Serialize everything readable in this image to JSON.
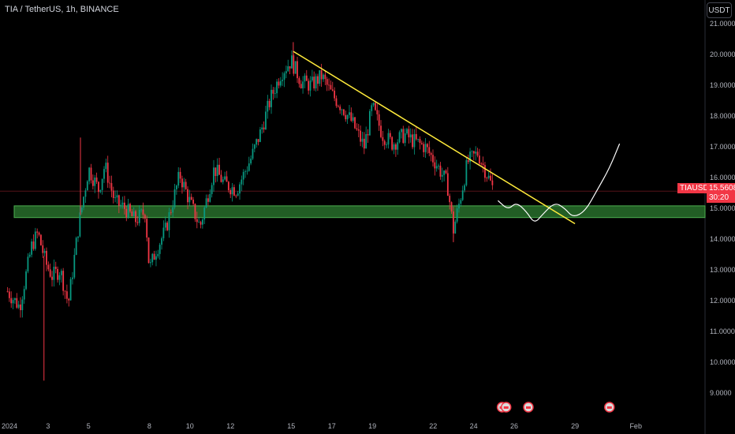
{
  "header": {
    "title": "TIA / TetherUS, 1h, BINANCE",
    "currency_button": "USDT"
  },
  "price_marker": {
    "symbol": "TIAUSDT",
    "price": "15.5608",
    "countdown": "30:20",
    "color": "#f23645"
  },
  "colors": {
    "up": "#089981",
    "down": "#f23645",
    "trendline": "#ffeb3b",
    "zone_fill": "#2e7d32",
    "projection": "#ffffff",
    "grid": "#1a1a1a"
  },
  "chart_data": {
    "type": "candlestick",
    "title": "TIA / TetherUS, 1h, BINANCE",
    "y_axis": {
      "ylim": [
        8.75,
        21.2
      ],
      "ticks": [
        "21.0000",
        "20.0000",
        "19.0000",
        "18.0000",
        "17.0000",
        "16.0000",
        "15.0000",
        "14.0000",
        "13.0000",
        "12.0000",
        "11.0000",
        "10.0000",
        "9.0000"
      ],
      "values": [
        21,
        20,
        19,
        18,
        17,
        16,
        15,
        14,
        13,
        12,
        11,
        10,
        9
      ]
    },
    "x_axis": {
      "xlim": [
        0,
        31.5
      ],
      "ticks": [
        {
          "label": "2024",
          "day": 1
        },
        {
          "label": "3",
          "day": 3
        },
        {
          "label": "5",
          "day": 5
        },
        {
          "label": "8",
          "day": 8
        },
        {
          "label": "10",
          "day": 10
        },
        {
          "label": "12",
          "day": 12
        },
        {
          "label": "15",
          "day": 15
        },
        {
          "label": "17",
          "day": 17
        },
        {
          "label": "19",
          "day": 19
        },
        {
          "label": "22",
          "day": 22
        },
        {
          "label": "24",
          "day": 24
        },
        {
          "label": "26",
          "day": 26
        },
        {
          "label": "29",
          "day": 29
        },
        {
          "label": "Feb",
          "day": 32
        },
        {
          "label": "3",
          "day": 35
        }
      ]
    },
    "close_path": [
      {
        "day": 1.0,
        "price": 12.3
      },
      {
        "day": 1.6,
        "price": 11.8
      },
      {
        "day": 2.2,
        "price": 13.8
      },
      {
        "day": 2.5,
        "price": 14.2
      },
      {
        "day": 2.9,
        "price": 13.2
      },
      {
        "day": 3.2,
        "price": 12.8
      },
      {
        "day": 3.6,
        "price": 13.0
      },
      {
        "day": 4.0,
        "price": 11.9
      },
      {
        "day": 4.5,
        "price": 14.4
      },
      {
        "day": 5.0,
        "price": 16.3
      },
      {
        "day": 5.5,
        "price": 15.6
      },
      {
        "day": 5.8,
        "price": 16.4
      },
      {
        "day": 6.3,
        "price": 15.2
      },
      {
        "day": 6.8,
        "price": 15.0
      },
      {
        "day": 7.3,
        "price": 14.6
      },
      {
        "day": 7.8,
        "price": 14.9
      },
      {
        "day": 8.0,
        "price": 13.0
      },
      {
        "day": 8.3,
        "price": 13.6
      },
      {
        "day": 8.8,
        "price": 14.3
      },
      {
        "day": 9.5,
        "price": 16.1
      },
      {
        "day": 10.0,
        "price": 15.2
      },
      {
        "day": 10.5,
        "price": 14.4
      },
      {
        "day": 11.2,
        "price": 16.3
      },
      {
        "day": 11.7,
        "price": 15.8
      },
      {
        "day": 12.3,
        "price": 15.6
      },
      {
        "day": 13.0,
        "price": 16.6
      },
      {
        "day": 13.5,
        "price": 17.5
      },
      {
        "day": 14.0,
        "price": 18.6
      },
      {
        "day": 14.5,
        "price": 19.4
      },
      {
        "day": 15.0,
        "price": 19.8
      },
      {
        "day": 15.5,
        "price": 19.1
      },
      {
        "day": 16.0,
        "price": 19.0
      },
      {
        "day": 16.5,
        "price": 19.3
      },
      {
        "day": 17.0,
        "price": 18.7
      },
      {
        "day": 17.5,
        "price": 18.3
      },
      {
        "day": 18.0,
        "price": 17.8
      },
      {
        "day": 18.6,
        "price": 17.0
      },
      {
        "day": 19.0,
        "price": 18.3
      },
      {
        "day": 19.5,
        "price": 17.4
      },
      {
        "day": 20.0,
        "price": 17.1
      },
      {
        "day": 20.6,
        "price": 17.4
      },
      {
        "day": 21.0,
        "price": 17.2
      },
      {
        "day": 21.6,
        "price": 17.0
      },
      {
        "day": 22.2,
        "price": 16.4
      },
      {
        "day": 22.7,
        "price": 15.8
      },
      {
        "day": 23.0,
        "price": 14.3
      },
      {
        "day": 23.3,
        "price": 15.2
      },
      {
        "day": 23.7,
        "price": 16.5
      },
      {
        "day": 24.2,
        "price": 16.8
      },
      {
        "day": 24.6,
        "price": 16.2
      },
      {
        "day": 25.0,
        "price": 15.56
      }
    ],
    "wick_extremes": [
      {
        "day": 2.8,
        "price": 9.4
      },
      {
        "day": 4.6,
        "price": 17.3
      },
      {
        "day": 15.1,
        "price": 20.4
      },
      {
        "day": 23.0,
        "price": 13.9
      }
    ],
    "trendline": {
      "from": {
        "day": 15.1,
        "price": 20.1
      },
      "to": {
        "day": 29.0,
        "price": 14.5
      }
    },
    "support_zone": {
      "from_price": 14.7,
      "to_price": 15.08
    },
    "last_price_line": 15.5608,
    "projection": [
      {
        "day": 25.2,
        "price": 15.25
      },
      {
        "day": 25.7,
        "price": 14.95
      },
      {
        "day": 26.1,
        "price": 15.2
      },
      {
        "day": 26.6,
        "price": 14.9
      },
      {
        "day": 27.0,
        "price": 14.5
      },
      {
        "day": 27.4,
        "price": 14.8
      },
      {
        "day": 28.0,
        "price": 15.2
      },
      {
        "day": 28.5,
        "price": 15.0
      },
      {
        "day": 28.9,
        "price": 14.7
      },
      {
        "day": 29.5,
        "price": 14.9
      },
      {
        "day": 30.1,
        "price": 15.6
      },
      {
        "day": 30.7,
        "price": 16.3
      },
      {
        "day": 31.2,
        "price": 17.1
      }
    ],
    "event_markers": [
      {
        "day": 25.4
      },
      {
        "day": 25.6
      },
      {
        "day": 26.7
      },
      {
        "day": 30.7
      }
    ]
  }
}
